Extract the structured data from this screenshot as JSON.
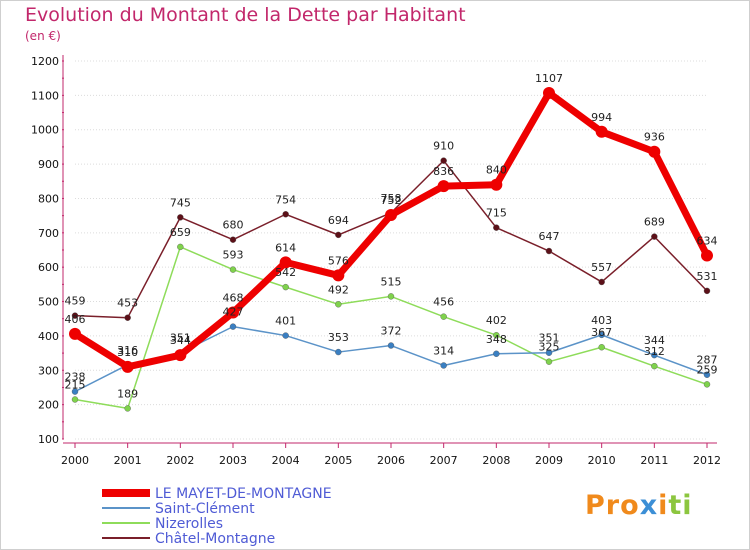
{
  "chart_data": {
    "type": "line",
    "title": "Evolution du Montant de la Dette par Habitant",
    "unit": "(en €)",
    "x": [
      "2000",
      "2001",
      "2002",
      "2003",
      "2004",
      "2005",
      "2006",
      "2007",
      "2008",
      "2009",
      "2010",
      "2011",
      "2012"
    ],
    "yticks": [
      100,
      200,
      300,
      400,
      500,
      600,
      700,
      800,
      900,
      1000,
      1100,
      1200
    ],
    "ylim": [
      100,
      1200
    ],
    "series": [
      {
        "name": "Châtel-Montagne",
        "color": "#7a1f2a",
        "marker": "#5c1018",
        "width": 1.5,
        "values": [
          459,
          453,
          745,
          680,
          754,
          694,
          758,
          910,
          715,
          647,
          557,
          689,
          531
        ]
      },
      {
        "name": "Nizerolles",
        "color": "#8edc5a",
        "marker": "#7fd24c",
        "width": 1.5,
        "values": [
          215,
          189,
          659,
          593,
          542,
          492,
          515,
          456,
          402,
          325,
          367,
          312,
          259
        ]
      },
      {
        "name": "Saint-Clément",
        "color": "#5b93c8",
        "marker": "#3a7fc2",
        "width": 1.5,
        "values": [
          238,
          316,
          351,
          427,
          401,
          353,
          372,
          314,
          348,
          351,
          403,
          344,
          287
        ]
      },
      {
        "name": "LE MAYET-DE-MONTAGNE",
        "color": "#ee0000",
        "marker": "#ee0000",
        "width": 7,
        "values": [
          406,
          310,
          344,
          468,
          614,
          576,
          752,
          836,
          840,
          1107,
          994,
          936,
          634
        ]
      }
    ],
    "legend": [
      "LE MAYET-DE-MONTAGNE",
      "Saint-Clément",
      "Nizerolles",
      "Châtel-Montagne"
    ]
  },
  "legend_text_color": "#4f5bd5",
  "logo": {
    "letters": [
      "P",
      "r",
      "o",
      "x",
      "i",
      "t",
      "i"
    ],
    "colors": [
      "#f08a1c",
      "#f08a1c",
      "#f08a1c",
      "#3c8fd6",
      "#f08a1c",
      "#8cc63f",
      "#8cc63f"
    ]
  }
}
